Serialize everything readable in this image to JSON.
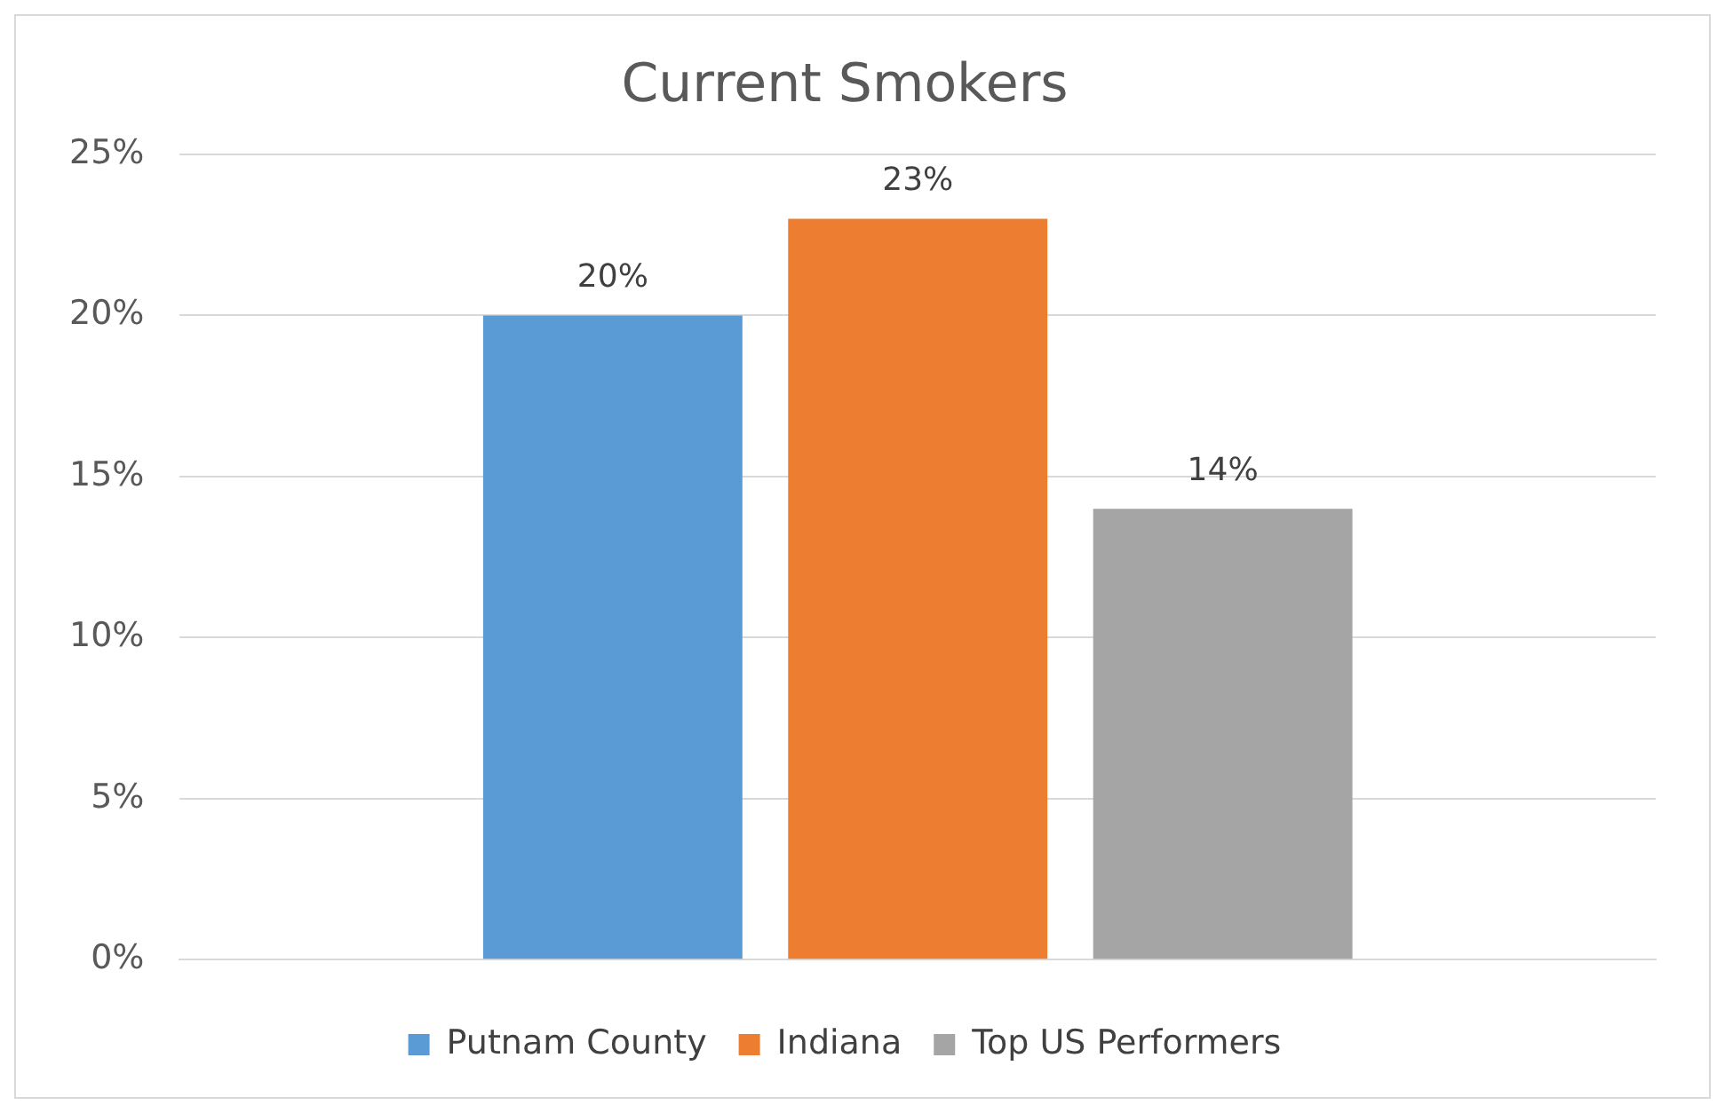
{
  "chart_data": {
    "type": "bar",
    "title": "Current Smokers",
    "categories": [
      null
    ],
    "series": [
      {
        "name": "Putnam County",
        "color": "#5b9bd5",
        "values": [
          20
        ],
        "value_labels": [
          "20%"
        ]
      },
      {
        "name": "Indiana",
        "color": "#ed7d31",
        "values": [
          23
        ],
        "value_labels": [
          "23%"
        ]
      },
      {
        "name": "Top US Performers",
        "color": "#a5a5a5",
        "values": [
          14
        ],
        "value_labels": [
          "14%"
        ]
      }
    ],
    "ylim": [
      0,
      25
    ],
    "yticks": [
      {
        "value": 0,
        "label": "0%"
      },
      {
        "value": 5,
        "label": "5%"
      },
      {
        "value": 10,
        "label": "10%"
      },
      {
        "value": 15,
        "label": "15%"
      },
      {
        "value": 20,
        "label": "20%"
      },
      {
        "value": 25,
        "label": "25%"
      }
    ],
    "grid": "y",
    "legend": "bottom"
  }
}
